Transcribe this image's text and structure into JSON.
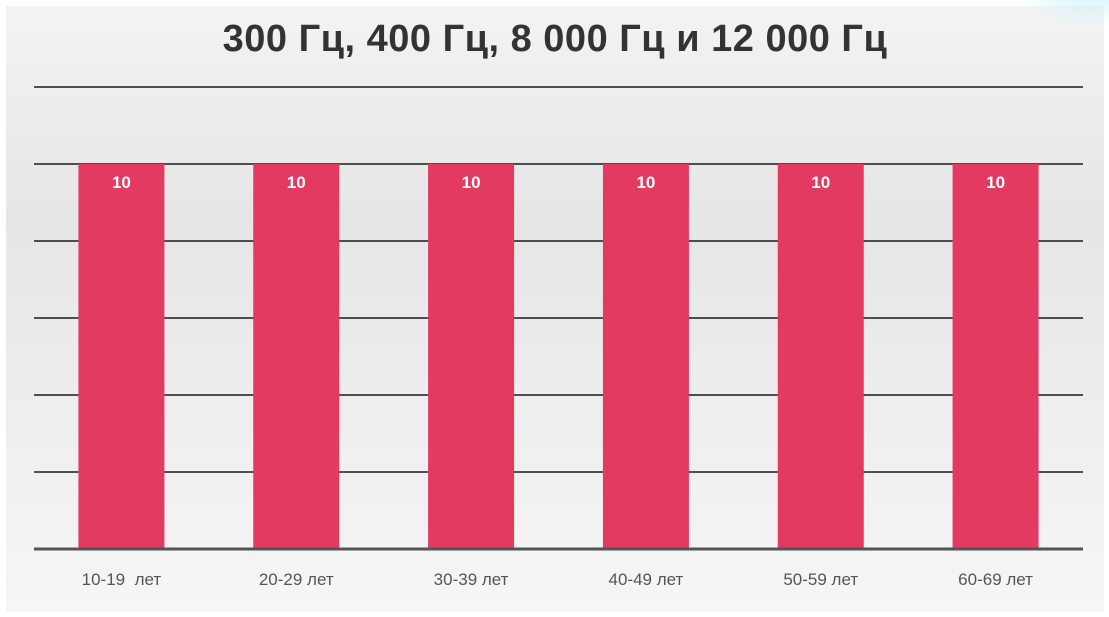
{
  "chart_data": {
    "type": "bar",
    "title": "300 Гц, 400 Гц, 8 000 Гц и 12 000 Гц",
    "categories": [
      "10-19  лет",
      "20-29 лет",
      "30-39 лет",
      "40-49 лет",
      "50-59 лет",
      "60-69 лет"
    ],
    "values": [
      10,
      10,
      10,
      10,
      10,
      10
    ],
    "data_labels": [
      "10",
      "10",
      "10",
      "10",
      "10",
      "10"
    ],
    "ylim": [
      0,
      12
    ],
    "y_gridline_values": [
      2,
      4,
      6,
      8,
      10,
      12
    ],
    "grid": true,
    "legend": "none",
    "colors": {
      "bar": "#e23a60",
      "gridline": "#1a1a1a",
      "axis": "#555555"
    }
  }
}
